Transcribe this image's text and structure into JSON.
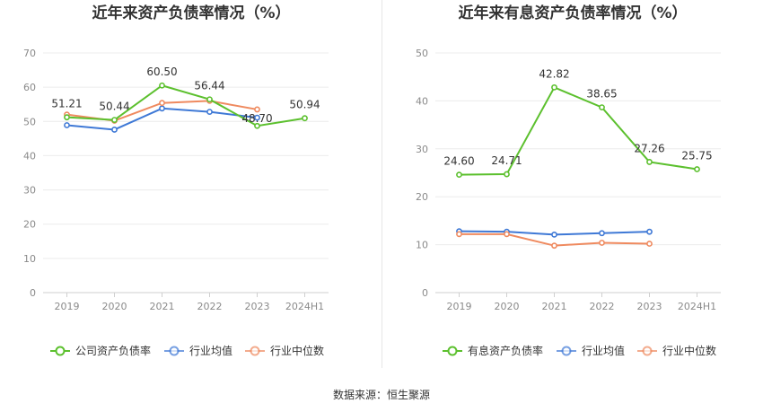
{
  "source_label": "数据来源：恒生聚源",
  "chart_data": [
    {
      "type": "line",
      "title": "近年来资产负债率情况（%）",
      "categories": [
        "2019",
        "2020",
        "2021",
        "2022",
        "2023",
        "2024H1"
      ],
      "ylim": [
        0,
        70
      ],
      "yticks": [
        0,
        10,
        20,
        30,
        40,
        50,
        60,
        70
      ],
      "grid": true,
      "legend_position": "bottom",
      "series": [
        {
          "name": "公司资产负债率",
          "color": "#5cc02e",
          "values": [
            51.21,
            50.44,
            60.5,
            56.44,
            48.7,
            50.94
          ],
          "labels": [
            "51.21",
            "50.44",
            "60.50",
            "56.44",
            "48.70",
            "50.94"
          ]
        },
        {
          "name": "行业均值",
          "color": "#3f79d6",
          "values": [
            48.9,
            47.6,
            53.8,
            52.8,
            51.1,
            null
          ]
        },
        {
          "name": "行业中位数",
          "color": "#ef8a5f",
          "values": [
            52.0,
            50.2,
            55.4,
            56.0,
            53.5,
            null
          ]
        }
      ]
    },
    {
      "type": "line",
      "title": "近年来有息资产负债率情况（%）",
      "categories": [
        "2019",
        "2020",
        "2021",
        "2022",
        "2023",
        "2024H1"
      ],
      "ylim": [
        0,
        50
      ],
      "yticks": [
        0,
        10,
        20,
        30,
        40,
        50
      ],
      "grid": true,
      "legend_position": "bottom",
      "series": [
        {
          "name": "有息资产负债率",
          "color": "#5cc02e",
          "values": [
            24.6,
            24.71,
            42.82,
            38.65,
            27.26,
            25.75
          ],
          "labels": [
            "24.60",
            "24.71",
            "42.82",
            "38.65",
            "27.26",
            "25.75"
          ]
        },
        {
          "name": "行业均值",
          "color": "#3f79d6",
          "values": [
            12.8,
            12.7,
            12.1,
            12.4,
            12.7,
            null
          ]
        },
        {
          "name": "行业中位数",
          "color": "#ef8a5f",
          "values": [
            12.2,
            12.2,
            9.8,
            10.4,
            10.2,
            null
          ]
        }
      ]
    }
  ]
}
